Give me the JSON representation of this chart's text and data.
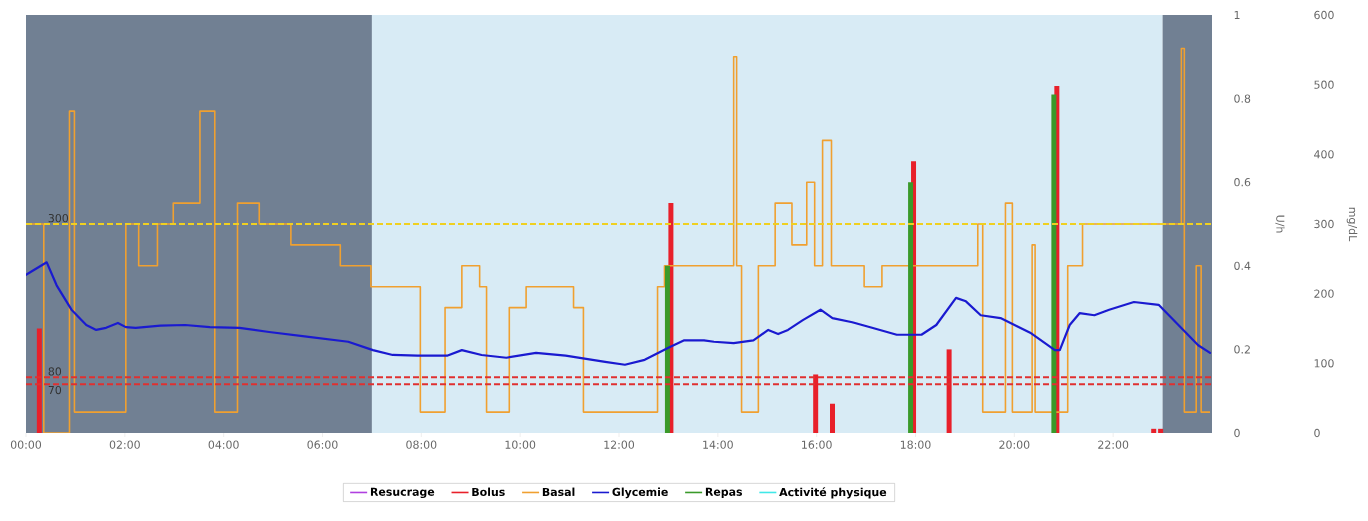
{
  "chart_data": {
    "type": "line",
    "ylabel": "U/h",
    "y2label": "mg/dL",
    "xlim": [
      0,
      24
    ],
    "xticks": [
      {
        "value": 0,
        "label": "00:00"
      },
      {
        "value": 2,
        "label": "02:00"
      },
      {
        "value": 4,
        "label": "04:00"
      },
      {
        "value": 6,
        "label": "06:00"
      },
      {
        "value": 8,
        "label": "08:00"
      },
      {
        "value": 10,
        "label": "10:00"
      },
      {
        "value": 12,
        "label": "12:00"
      },
      {
        "value": 14,
        "label": "14:00"
      },
      {
        "value": 16,
        "label": "16:00"
      },
      {
        "value": 18,
        "label": "18:00"
      },
      {
        "value": 20,
        "label": "20:00"
      },
      {
        "value": 22,
        "label": "22:00"
      }
    ],
    "ylim": [
      0,
      1
    ],
    "yticks": [
      0,
      0.2,
      0.4,
      0.6,
      0.8,
      1
    ],
    "y2lim": [
      0,
      600
    ],
    "y2ticks": [
      0,
      100,
      200,
      300,
      400,
      500,
      600
    ],
    "legend": "bottom",
    "bands": [
      {
        "axis": "x",
        "from": 0,
        "to": 7,
        "color": "#718093"
      },
      {
        "axis": "x",
        "from": 7,
        "to": 23,
        "color": "#d8ebf5"
      },
      {
        "axis": "x",
        "from": 23,
        "to": 24,
        "color": "#718093"
      }
    ],
    "ref_lines": [
      {
        "axis": "y2",
        "value": 300,
        "label": "300",
        "color": "#f0d020",
        "line_style": "dashed"
      },
      {
        "axis": "y2",
        "value": 80,
        "label": "80",
        "color": "#e03030",
        "line_style": "dashed"
      },
      {
        "axis": "y2",
        "value": 70,
        "label": "70",
        "color": "#e03030",
        "line_style": "dashed"
      }
    ],
    "series": [
      {
        "name": "Resucrage",
        "color": "#b040e0"
      },
      {
        "name": "Bolus",
        "type": "bar",
        "color": "#e8202a",
        "x": [
          0.27,
          13.05,
          15.98,
          16.32,
          17.96,
          18.68,
          20.86,
          22.82,
          22.96
        ],
        "values": [
          0.25,
          0.55,
          0.14,
          0.07,
          0.65,
          0.2,
          0.83,
          0.01,
          0.01
        ]
      },
      {
        "name": "Basal",
        "type": "step",
        "color": "#f0a030",
        "x": [
          0,
          0.36,
          0.88,
          0.98,
          2.02,
          2.28,
          2.66,
          2.98,
          3.52,
          3.82,
          4.28,
          4.72,
          5.36,
          6.36,
          6.98,
          7.98,
          8.48,
          8.82,
          9.18,
          9.32,
          9.78,
          10.12,
          11.08,
          11.28,
          12.78,
          12.92,
          14.32,
          14.38,
          14.48,
          14.82,
          15.16,
          15.5,
          15.8,
          15.96,
          16.12,
          16.3,
          16.96,
          17.32,
          19.26,
          19.36,
          19.82,
          19.96,
          20.36,
          20.42,
          21.08,
          21.38,
          23.38,
          23.44,
          23.68,
          23.78,
          23.96
        ],
        "values": [
          0.5,
          0,
          0.77,
          0.05,
          0.5,
          0.4,
          0.5,
          0.55,
          0.77,
          0.05,
          0.55,
          0.5,
          0.45,
          0.4,
          0.35,
          0.05,
          0.3,
          0.4,
          0.35,
          0.05,
          0.3,
          0.35,
          0.3,
          0.05,
          0.35,
          0.4,
          0.9,
          0.4,
          0.05,
          0.4,
          0.55,
          0.45,
          0.6,
          0.4,
          0.7,
          0.4,
          0.35,
          0.4,
          0.5,
          0.05,
          0.55,
          0.05,
          0.45,
          0.05,
          0.4,
          0.5,
          0.92,
          0.05,
          0.4,
          0.05,
          0.05
        ]
      },
      {
        "name": "Glycemie",
        "axis": "y2",
        "color": "#1a1ad0",
        "x": [
          0,
          0.16,
          0.42,
          0.62,
          0.92,
          1.22,
          1.42,
          1.62,
          1.86,
          2.02,
          2.22,
          2.72,
          3.22,
          3.72,
          4.32,
          4.92,
          5.72,
          6.52,
          7.02,
          7.42,
          7.92,
          8.52,
          8.82,
          9.22,
          9.72,
          10.32,
          10.92,
          11.72,
          12.12,
          12.52,
          13.02,
          13.32,
          13.72,
          13.92,
          14.32,
          14.72,
          15.02,
          15.22,
          15.42,
          15.72,
          16.08,
          16.32,
          16.72,
          17.12,
          17.62,
          18.12,
          18.42,
          18.82,
          19.02,
          19.32,
          19.72,
          20.32,
          20.82,
          20.92,
          21.12,
          21.32,
          21.62,
          21.92,
          22.42,
          22.92,
          23.32,
          23.72,
          23.96
        ],
        "values": [
          227,
          234,
          245,
          212,
          177,
          155,
          148,
          151,
          158,
          152,
          151,
          154,
          155,
          152,
          151,
          145,
          138,
          131,
          119,
          112,
          111,
          111,
          119,
          112,
          108,
          115,
          111,
          102,
          98,
          105,
          123,
          133,
          133,
          131,
          129,
          133,
          148,
          142,
          148,
          162,
          177,
          165,
          159,
          151,
          141,
          141,
          155,
          194,
          189,
          169,
          165,
          144,
          119,
          119,
          155,
          172,
          169,
          177,
          188,
          184,
          155,
          126,
          115
        ]
      },
      {
        "name": "Repas",
        "type": "bar",
        "color": "#3a9a2a",
        "x": [
          12.98,
          17.9,
          20.8
        ],
        "values": [
          0.4,
          0.6,
          0.81
        ]
      },
      {
        "name": "Activité physique",
        "color": "#40e8e8"
      }
    ]
  }
}
